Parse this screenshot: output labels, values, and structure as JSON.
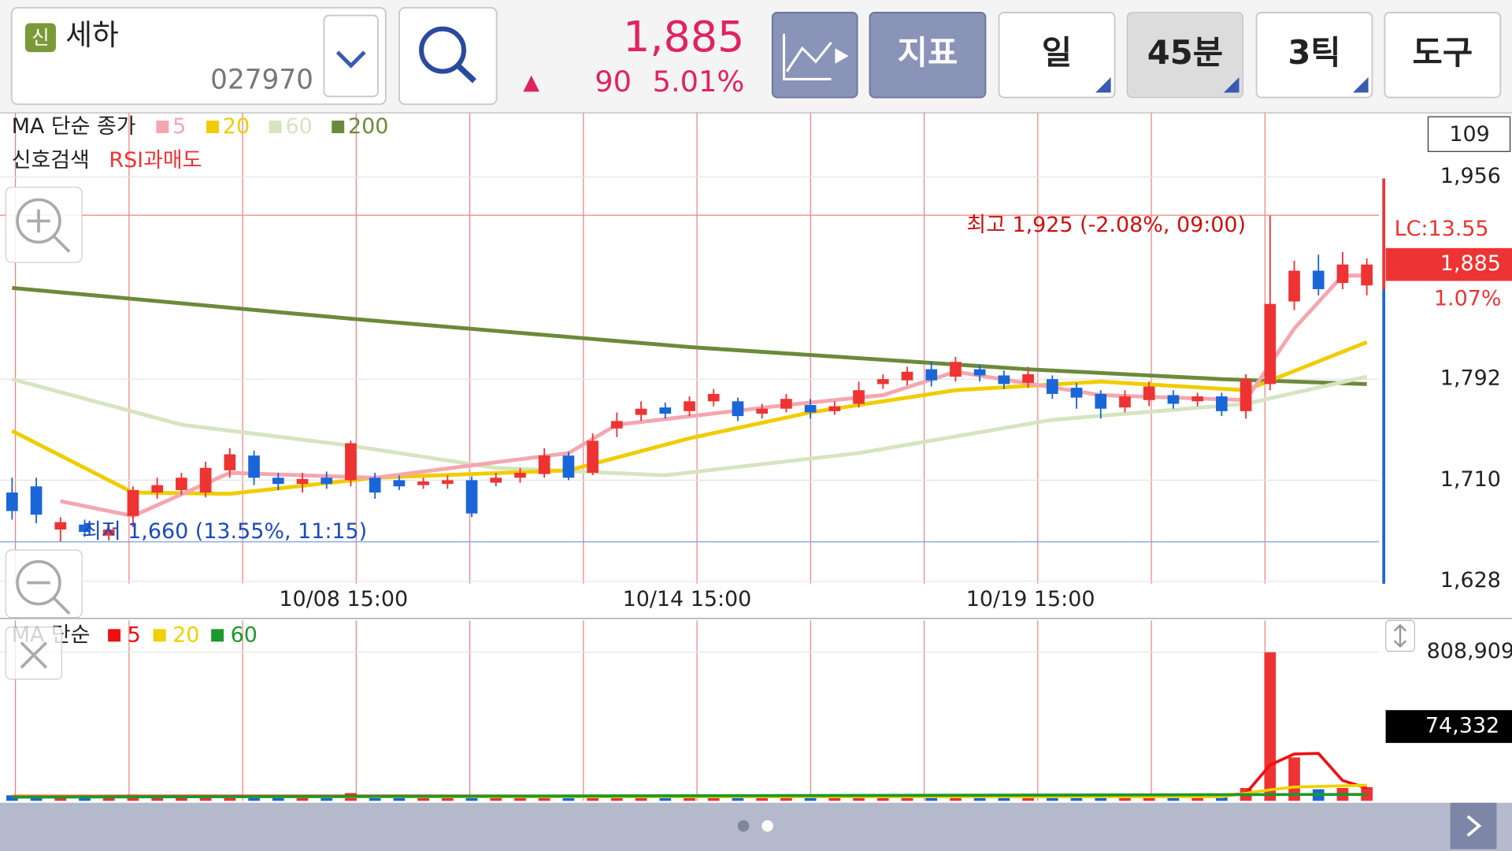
{
  "header": {
    "badge": "신",
    "name": "세하",
    "code": "027970",
    "price": "1,885",
    "arrow": "▲",
    "change": "90",
    "change_pct": "5.01%",
    "buttons": [
      "지표",
      "일",
      "45분",
      "3틱",
      "도구"
    ]
  },
  "chart_data": [
    {
      "type": "candlestick",
      "legend_title": "MA 단순 종가",
      "signal_title": "신호검색",
      "signal": "RSI과매도",
      "count": "109",
      "up_color": "#ee3333",
      "down_color": "#1a66d9",
      "xlim": [
        -0.5,
        56.5
      ],
      "xticks": [
        {
          "value": 13.7,
          "label": "10/08 15:00"
        },
        {
          "value": 27.9,
          "label": "10/14 15:00"
        },
        {
          "value": 42.1,
          "label": "10/19 15:00"
        }
      ],
      "ylim": [
        1626,
        2008
      ],
      "yticks": [
        {
          "value": 1956,
          "label": "1,956"
        },
        {
          "value": 1792,
          "label": "1,792"
        },
        {
          "value": 1710,
          "label": "1,710"
        },
        {
          "value": 1628,
          "label": "1,628"
        }
      ],
      "grid": true,
      "open": [
        1700,
        1705,
        1670,
        1674,
        1665,
        1681,
        1700,
        1702,
        1700,
        1718,
        1730,
        1712,
        1707,
        1712,
        1710,
        1712,
        1710,
        1706,
        1707,
        1710,
        1708,
        1712,
        1715,
        1730,
        1716,
        1752,
        1763,
        1769,
        1766,
        1774,
        1774,
        1764,
        1768,
        1771,
        1766,
        1772,
        1788,
        1791,
        1800,
        1794,
        1800,
        1795,
        1789,
        1792,
        1785,
        1780,
        1769,
        1775,
        1779,
        1774,
        1778,
        1766,
        1788,
        1855,
        1880,
        1870,
        1868
      ],
      "high": [
        1712,
        1712,
        1680,
        1678,
        1675,
        1705,
        1712,
        1716,
        1725,
        1736,
        1734,
        1716,
        1716,
        1717,
        1742,
        1716,
        1714,
        1712,
        1714,
        1713,
        1716,
        1720,
        1736,
        1733,
        1748,
        1765,
        1774,
        1773,
        1778,
        1784,
        1777,
        1772,
        1780,
        1776,
        1774,
        1790,
        1796,
        1802,
        1806,
        1810,
        1804,
        1799,
        1802,
        1795,
        1789,
        1783,
        1783,
        1790,
        1783,
        1781,
        1781,
        1796,
        1925,
        1888,
        1893,
        1895,
        1890
      ],
      "low": [
        1678,
        1675,
        1660,
        1664,
        1661,
        1672,
        1695,
        1698,
        1696,
        1712,
        1706,
        1702,
        1700,
        1703,
        1705,
        1695,
        1702,
        1703,
        1703,
        1680,
        1705,
        1708,
        1712,
        1710,
        1714,
        1745,
        1758,
        1760,
        1762,
        1770,
        1758,
        1760,
        1765,
        1760,
        1763,
        1769,
        1784,
        1787,
        1786,
        1790,
        1790,
        1784,
        1785,
        1776,
        1768,
        1760,
        1765,
        1770,
        1768,
        1770,
        1762,
        1760,
        1783,
        1848,
        1860,
        1865,
        1860
      ],
      "close": [
        1685,
        1682,
        1676,
        1668,
        1670,
        1702,
        1706,
        1712,
        1720,
        1731,
        1712,
        1707,
        1711,
        1707,
        1740,
        1700,
        1705,
        1709,
        1710,
        1683,
        1712,
        1716,
        1730,
        1712,
        1742,
        1758,
        1768,
        1764,
        1774,
        1780,
        1762,
        1768,
        1776,
        1765,
        1770,
        1783,
        1792,
        1798,
        1791,
        1806,
        1795,
        1788,
        1796,
        1780,
        1777,
        1768,
        1778,
        1786,
        1772,
        1778,
        1766,
        1792,
        1853,
        1880,
        1865,
        1885,
        1885
      ],
      "series": [
        {
          "name": "5",
          "color": "#f4a7b0",
          "x": [
            2,
            5,
            9,
            15,
            23,
            25,
            32,
            36,
            39,
            45,
            51,
            53,
            55,
            56
          ],
          "values": [
            1693,
            1681,
            1716,
            1712,
            1732,
            1755,
            1771,
            1779,
            1798,
            1779,
            1775,
            1833,
            1876,
            1876
          ]
        },
        {
          "name": "20",
          "color": "#f0cc00",
          "x": [
            0,
            5,
            9,
            15,
            23,
            28,
            33,
            39,
            45,
            51,
            56
          ],
          "values": [
            1750,
            1700,
            1699,
            1712,
            1718,
            1744,
            1765,
            1783,
            1790,
            1783,
            1822
          ]
        },
        {
          "name": "60",
          "color": "#d6e4c0",
          "x": [
            0,
            7,
            14,
            20,
            27,
            35,
            43,
            51,
            56
          ],
          "values": [
            1792,
            1755,
            1738,
            1720,
            1714,
            1732,
            1759,
            1772,
            1794
          ]
        },
        {
          "name": "200",
          "color": "#6b8a3a",
          "x": [
            0,
            14,
            28,
            42,
            50,
            56
          ],
          "values": [
            1866,
            1841,
            1818,
            1800,
            1792,
            1788
          ]
        }
      ],
      "high_mark": {
        "value": 1925,
        "label": "최고 1,925 (-2.08%, 09:00)"
      },
      "low_mark": {
        "value": 1660,
        "label": "최저 1,660 (13.55%, 11:15)"
      },
      "lc": "LC:13.55",
      "current": {
        "value": 1885,
        "label": "1,885"
      },
      "current_pct": "1.07%"
    },
    {
      "type": "bar",
      "legend_title": "MA 단순",
      "ylim": [
        0,
        982000
      ],
      "yticks": [
        {
          "value": 808909,
          "label": "808,909"
        }
      ],
      "values": [
        30000,
        26000,
        22000,
        18000,
        20000,
        34000,
        24000,
        20000,
        28000,
        30000,
        26000,
        18000,
        22000,
        20000,
        42000,
        26000,
        22000,
        18000,
        20000,
        30000,
        22000,
        24000,
        28000,
        26000,
        32000,
        30000,
        24000,
        20000,
        24000,
        26000,
        22000,
        18000,
        20000,
        22000,
        18000,
        24000,
        28000,
        26000,
        30000,
        32000,
        24000,
        20000,
        26000,
        22000,
        24000,
        28000,
        40000,
        30000,
        22000,
        20000,
        26000,
        70000,
        808909,
        236000,
        63000,
        70000,
        74332
      ],
      "series": [
        {
          "name": "5",
          "color": "#ee1111",
          "x": [
            0,
            50,
            51,
            52,
            53,
            54,
            55,
            56
          ],
          "values": [
            25000,
            28000,
            40000,
            195000,
            255000,
            258000,
            110000,
            70000
          ]
        },
        {
          "name": "20",
          "color": "#f0d000",
          "x": [
            0,
            50,
            52,
            53,
            56
          ],
          "values": [
            22000,
            22000,
            60000,
            75000,
            85000
          ]
        },
        {
          "name": "60",
          "color": "#1a9a2a",
          "x": [
            0,
            56
          ],
          "values": [
            20000,
            35000
          ]
        }
      ],
      "current": {
        "value": 74332,
        "label": "74,332"
      }
    }
  ]
}
